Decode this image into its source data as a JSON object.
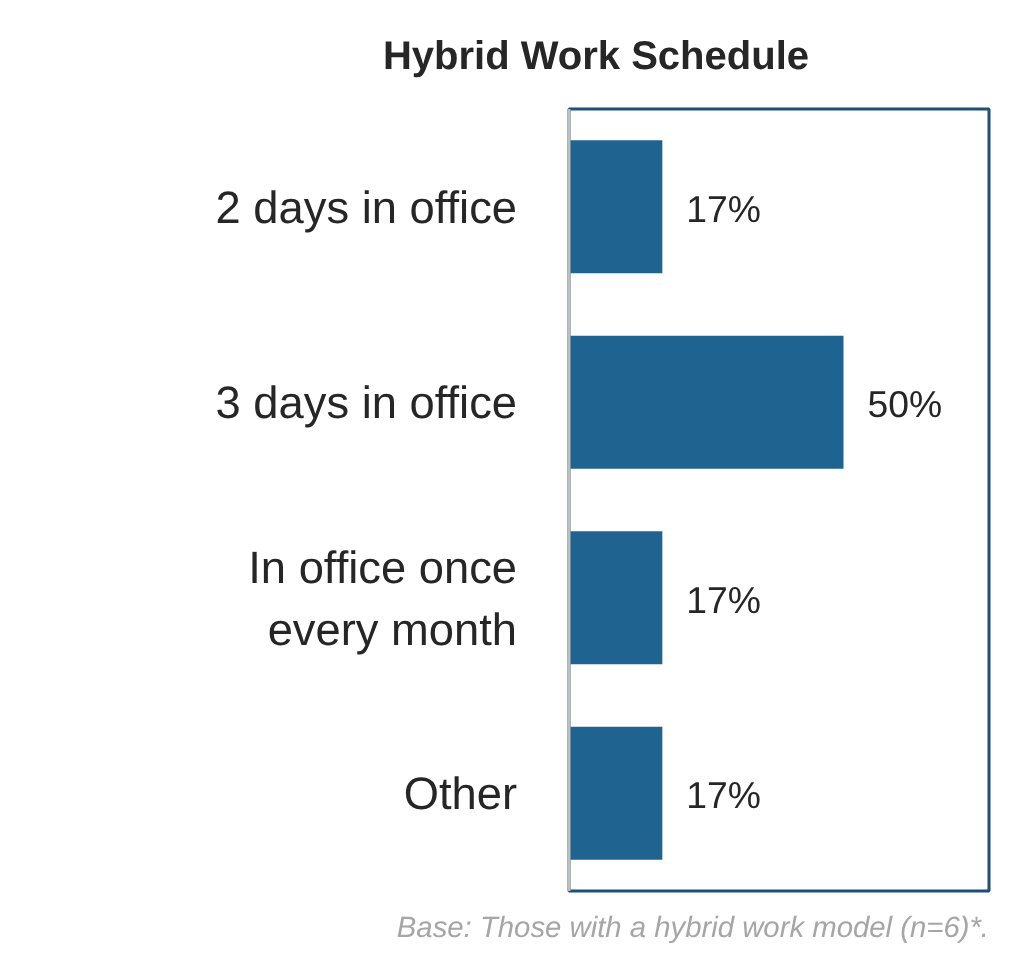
{
  "chart_data": {
    "type": "bar",
    "orientation": "horizontal",
    "title": "Hybrid Work Schedule",
    "categories": [
      "2 days in office",
      "3 days in office",
      "In office once\nevery month",
      "Other"
    ],
    "values": [
      17,
      50,
      17,
      17
    ],
    "value_labels": [
      "17%",
      "50%",
      "17%",
      "17%"
    ],
    "color": "#1f6391",
    "annotations": [
      "Base: Those with a hybrid work model (n=6)*."
    ]
  }
}
